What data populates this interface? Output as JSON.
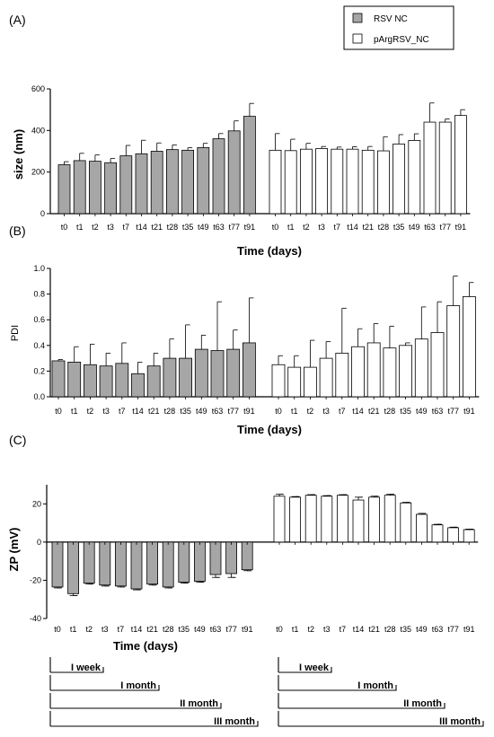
{
  "legend": {
    "entries": [
      {
        "name": "RSV NC",
        "fill": "#a6a6a6"
      },
      {
        "name": "pArgRSV_NC",
        "fill": "#ffffff"
      }
    ]
  },
  "chart_data": [
    {
      "panel": "(A)",
      "type": "bar",
      "xlabel": "Time (days)",
      "ylabel": "size (nm)",
      "ylim": [
        0,
        600
      ],
      "yticks": [
        "0",
        "200",
        "400",
        "600"
      ],
      "groups": [
        {
          "series": "RSV NC",
          "categories": [
            "t0",
            "t1",
            "t2",
            "t3",
            "t7",
            "t14",
            "t21",
            "t28",
            "t35",
            "t49",
            "t63",
            "t77",
            "t91"
          ],
          "values": [
            235,
            255,
            252,
            245,
            278,
            288,
            300,
            308,
            305,
            318,
            360,
            398,
            468
          ],
          "errors": [
            15,
            35,
            30,
            20,
            50,
            65,
            40,
            22,
            12,
            20,
            25,
            48,
            62
          ]
        },
        {
          "series": "pArgRSV_NC",
          "categories": [
            "t0",
            "t1",
            "t2",
            "t3",
            "t7",
            "t14",
            "t21",
            "t28",
            "t35",
            "t49",
            "t63",
            "t77",
            "t91"
          ],
          "values": [
            305,
            303,
            310,
            313,
            310,
            310,
            305,
            302,
            335,
            352,
            440,
            440,
            472
          ],
          "errors": [
            80,
            55,
            28,
            10,
            10,
            12,
            18,
            68,
            45,
            32,
            92,
            15,
            28
          ]
        }
      ]
    },
    {
      "panel": "(B)",
      "type": "bar",
      "xlabel": "Time (days)",
      "ylabel": "PDI",
      "ylim": [
        0,
        1.0
      ],
      "yticks": [
        "0.0",
        "0.2",
        "0.4",
        "0.6",
        "0.8",
        "1.0"
      ],
      "groups": [
        {
          "series": "RSV NC",
          "categories": [
            "t0",
            "t1",
            "t2",
            "t3",
            "t7",
            "t14",
            "t21",
            "t28",
            "t35",
            "t49",
            "t63",
            "t77",
            "t91"
          ],
          "values": [
            0.28,
            0.27,
            0.25,
            0.24,
            0.26,
            0.18,
            0.24,
            0.3,
            0.3,
            0.37,
            0.36,
            0.37,
            0.42
          ],
          "errors": [
            0.01,
            0.12,
            0.16,
            0.1,
            0.16,
            0.09,
            0.1,
            0.15,
            0.26,
            0.11,
            0.38,
            0.15,
            0.35
          ]
        },
        {
          "series": "pArgRSV_NC",
          "categories": [
            "t0",
            "t1",
            "t2",
            "t3",
            "t7",
            "t14",
            "t21",
            "t28",
            "t35",
            "t49",
            "t63",
            "t77",
            "t91"
          ],
          "values": [
            0.25,
            0.23,
            0.23,
            0.3,
            0.34,
            0.39,
            0.42,
            0.38,
            0.4,
            0.45,
            0.5,
            0.71,
            0.78
          ],
          "errors": [
            0.07,
            0.09,
            0.21,
            0.13,
            0.35,
            0.14,
            0.15,
            0.17,
            0.02,
            0.25,
            0.24,
            0.23,
            0.11
          ]
        }
      ]
    },
    {
      "panel": "(C)",
      "type": "bar",
      "xlabel": "Time (days)",
      "ylabel": "ZP (mV)",
      "ylim": [
        -40,
        30
      ],
      "yticks": [
        "-40",
        "-20",
        "0",
        "20"
      ],
      "groups": [
        {
          "series": "RSV NC",
          "categories": [
            "t0",
            "t1",
            "t2",
            "t3",
            "t7",
            "t14",
            "t21",
            "t28",
            "t35",
            "t49",
            "t63",
            "t77",
            "t91"
          ],
          "values": [
            -23.5,
            -27,
            -21.5,
            -22.5,
            -23,
            -24.5,
            -22,
            -23.5,
            -21,
            -20.5,
            -17,
            -16.5,
            -14.5
          ],
          "errors": [
            0.5,
            1,
            0.5,
            0.5,
            0.5,
            0.5,
            0.5,
            0.5,
            0.5,
            0.5,
            1.5,
            2,
            0.5
          ]
        },
        {
          "series": "pArgRSV_NC",
          "categories": [
            "t0",
            "t1",
            "t2",
            "t3",
            "t7",
            "t14",
            "t21",
            "t28",
            "t35",
            "t49",
            "t63",
            "t77",
            "t91"
          ],
          "values": [
            24,
            23.5,
            24.5,
            24,
            24.5,
            22,
            23.5,
            24.5,
            20.5,
            14.5,
            9,
            7.5,
            6.5
          ],
          "errors": [
            1,
            0.3,
            0.3,
            0.3,
            0.3,
            1.5,
            0.5,
            0.5,
            0.3,
            0.5,
            0.3,
            0.3,
            0.3
          ]
        }
      ]
    }
  ],
  "brackets": {
    "labels": [
      "I week",
      "I month",
      "II month",
      "III month"
    ]
  }
}
